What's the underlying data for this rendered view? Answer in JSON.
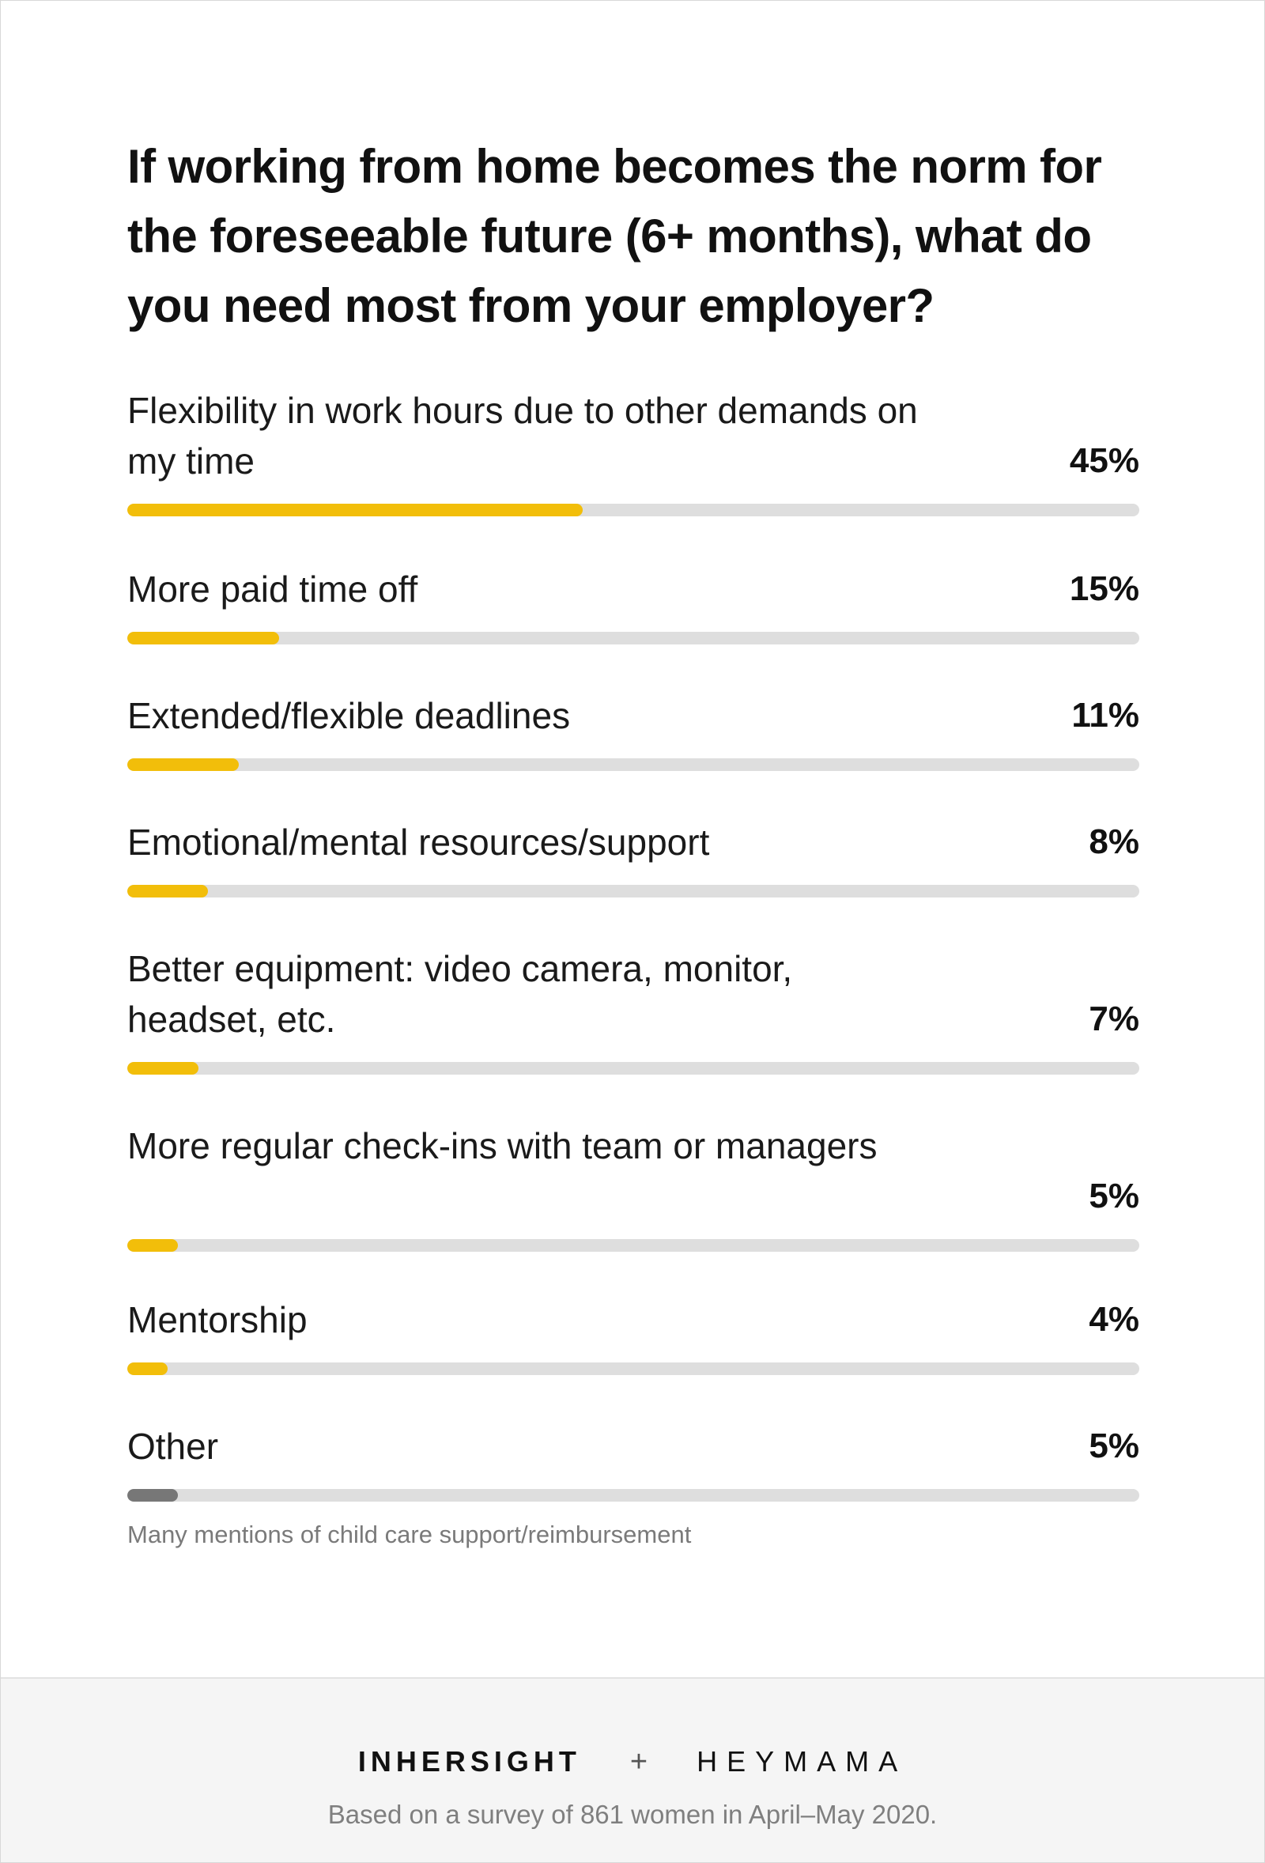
{
  "title": "If working from home becomes the norm for the foreseeable future (6+ months), what do you need most from your employer?",
  "colors": {
    "highlight": "#f2be0a",
    "other": "#777777",
    "track": "#dedede"
  },
  "chart_data": {
    "type": "bar",
    "orientation": "horizontal",
    "title": "If working from home becomes the norm for the foreseeable future (6+ months), what do you need most from your employer?",
    "xlim": [
      0,
      100
    ],
    "categories": [
      "Flexibility in work hours due to other demands on my time",
      "More paid time off",
      "Extended/flexible deadlines",
      "Emotional/mental resources/support",
      "Better equipment: video camera, monitor, headset, etc.",
      "More regular check-ins with team or managers",
      "Mentorship",
      "Other"
    ],
    "values": [
      45,
      15,
      11,
      8,
      7,
      5,
      4,
      5
    ],
    "value_labels": [
      "45%",
      "15%",
      "11%",
      "8%",
      "7%",
      "5%",
      "4%",
      "5%"
    ],
    "bar_colors": [
      "#f2be0a",
      "#f2be0a",
      "#f2be0a",
      "#f2be0a",
      "#f2be0a",
      "#f2be0a",
      "#f2be0a",
      "#777777"
    ],
    "annotation": "Many mentions of child care support/reimbursement"
  },
  "footer": {
    "logo_left": "INHERSIGHT",
    "logo_separator": "+",
    "logo_right": "HEYMAMA",
    "source": "Based on a survey of 861 women in April–May 2020."
  }
}
